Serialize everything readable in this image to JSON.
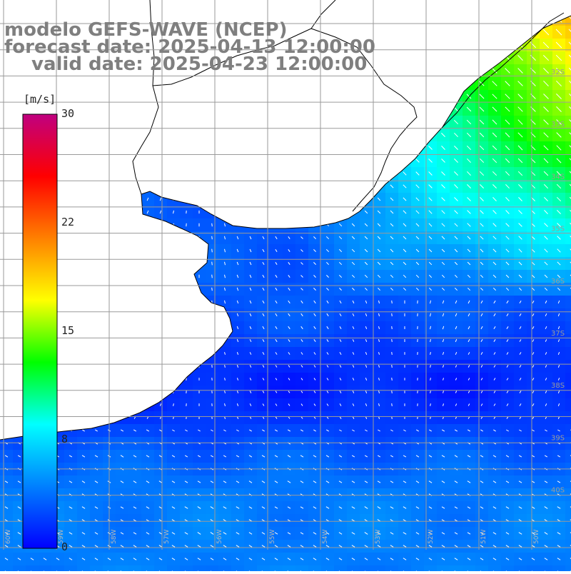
{
  "title": {
    "line1": "modelo GEFS-WAVE (NCEP)",
    "line2": "forecast date: 2025-04-13 12:00:00",
    "line3": "valid date: 2025-04-23 12:00:00"
  },
  "colorbar": {
    "unit": "[m/s]",
    "ticks": [
      "30",
      "22",
      "15",
      "8",
      "0"
    ],
    "min": 0,
    "max": 30,
    "colors": [
      "#0000ff",
      "#0080ff",
      "#00ffff",
      "#00ff00",
      "#ffff00",
      "#ff8000",
      "#ff0000",
      "#c00080"
    ]
  },
  "map": {
    "lat_labels": [
      "32S",
      "33S",
      "34S",
      "35S",
      "36S",
      "37S",
      "38S",
      "39S",
      "40S"
    ],
    "lon_labels": [
      "60W",
      "59W",
      "58W",
      "57W",
      "56W",
      "55W",
      "54W",
      "53W",
      "52W",
      "51W",
      "50W"
    ],
    "land_color": "#ffffff",
    "grid_color": "#9a9a9a",
    "coast_color": "#000000"
  }
}
